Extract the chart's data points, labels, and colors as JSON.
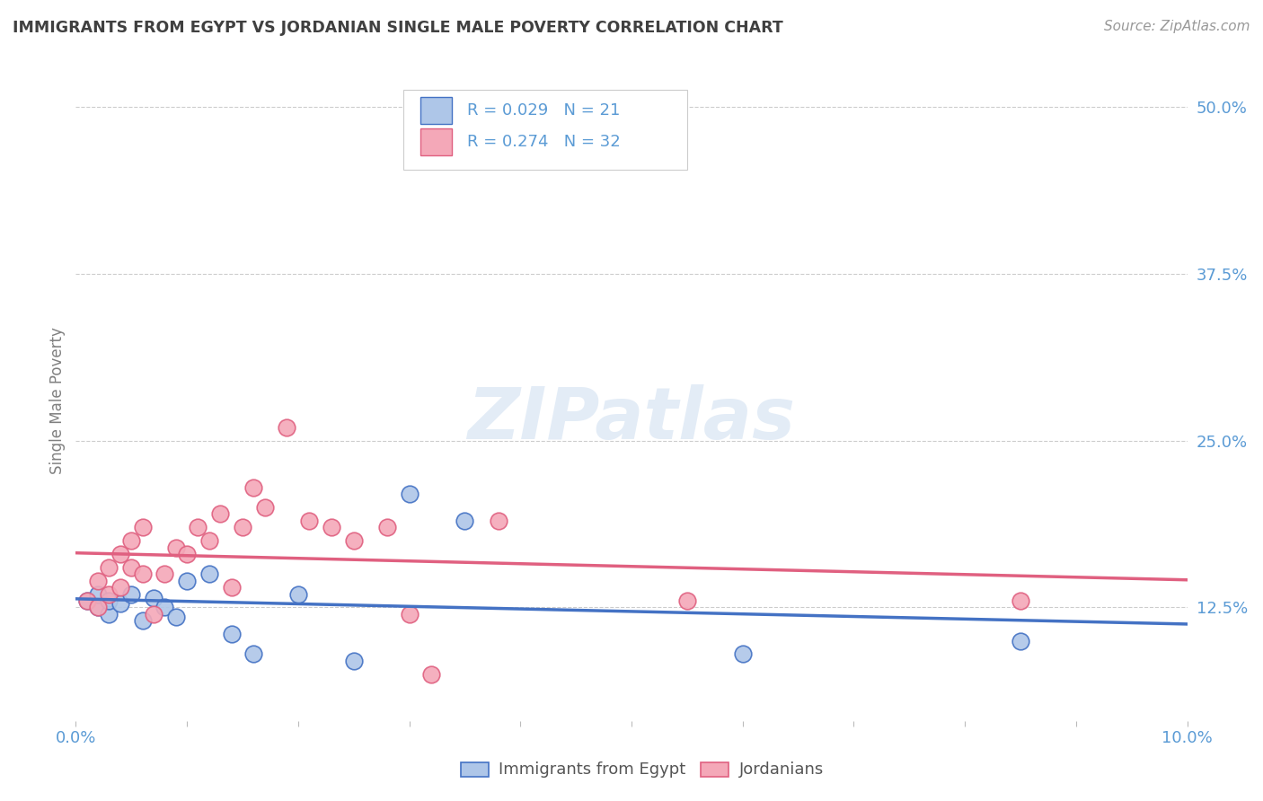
{
  "title": "IMMIGRANTS FROM EGYPT VS JORDANIAN SINGLE MALE POVERTY CORRELATION CHART",
  "source": "Source: ZipAtlas.com",
  "ylabel": "Single Male Poverty",
  "legend_label1": "Immigrants from Egypt",
  "legend_label2": "Jordanians",
  "legend_r1": "R = 0.029",
  "legend_n1": "N = 21",
  "legend_r2": "R = 0.274",
  "legend_n2": "N = 32",
  "watermark": "ZIPatlas",
  "xlim": [
    0.0,
    0.1
  ],
  "ylim": [
    0.04,
    0.52
  ],
  "yticks": [
    0.125,
    0.25,
    0.375,
    0.5
  ],
  "ytick_labels": [
    "12.5%",
    "25.0%",
    "37.5%",
    "50.0%"
  ],
  "xticks": [
    0.0,
    0.01,
    0.02,
    0.03,
    0.04,
    0.05,
    0.06,
    0.07,
    0.08,
    0.09,
    0.1
  ],
  "blue_color": "#aec6e8",
  "pink_color": "#f4a8b8",
  "blue_line_color": "#4472c4",
  "pink_line_color": "#e06080",
  "title_color": "#404040",
  "axis_color": "#5b9bd5",
  "egypt_x": [
    0.001,
    0.002,
    0.002,
    0.003,
    0.003,
    0.004,
    0.005,
    0.006,
    0.007,
    0.008,
    0.009,
    0.01,
    0.012,
    0.014,
    0.016,
    0.02,
    0.025,
    0.03,
    0.035,
    0.06,
    0.085
  ],
  "egypt_y": [
    0.13,
    0.125,
    0.135,
    0.12,
    0.13,
    0.128,
    0.135,
    0.115,
    0.132,
    0.125,
    0.118,
    0.145,
    0.15,
    0.105,
    0.09,
    0.135,
    0.085,
    0.21,
    0.19,
    0.09,
    0.1
  ],
  "jordan_x": [
    0.001,
    0.002,
    0.002,
    0.003,
    0.003,
    0.004,
    0.004,
    0.005,
    0.005,
    0.006,
    0.006,
    0.007,
    0.008,
    0.009,
    0.01,
    0.011,
    0.012,
    0.013,
    0.014,
    0.015,
    0.016,
    0.017,
    0.019,
    0.021,
    0.023,
    0.025,
    0.028,
    0.03,
    0.032,
    0.038,
    0.055,
    0.085
  ],
  "jordan_y": [
    0.13,
    0.125,
    0.145,
    0.135,
    0.155,
    0.14,
    0.165,
    0.155,
    0.175,
    0.15,
    0.185,
    0.12,
    0.15,
    0.17,
    0.165,
    0.185,
    0.175,
    0.195,
    0.14,
    0.185,
    0.215,
    0.2,
    0.26,
    0.19,
    0.185,
    0.175,
    0.185,
    0.12,
    0.075,
    0.19,
    0.13,
    0.13
  ]
}
